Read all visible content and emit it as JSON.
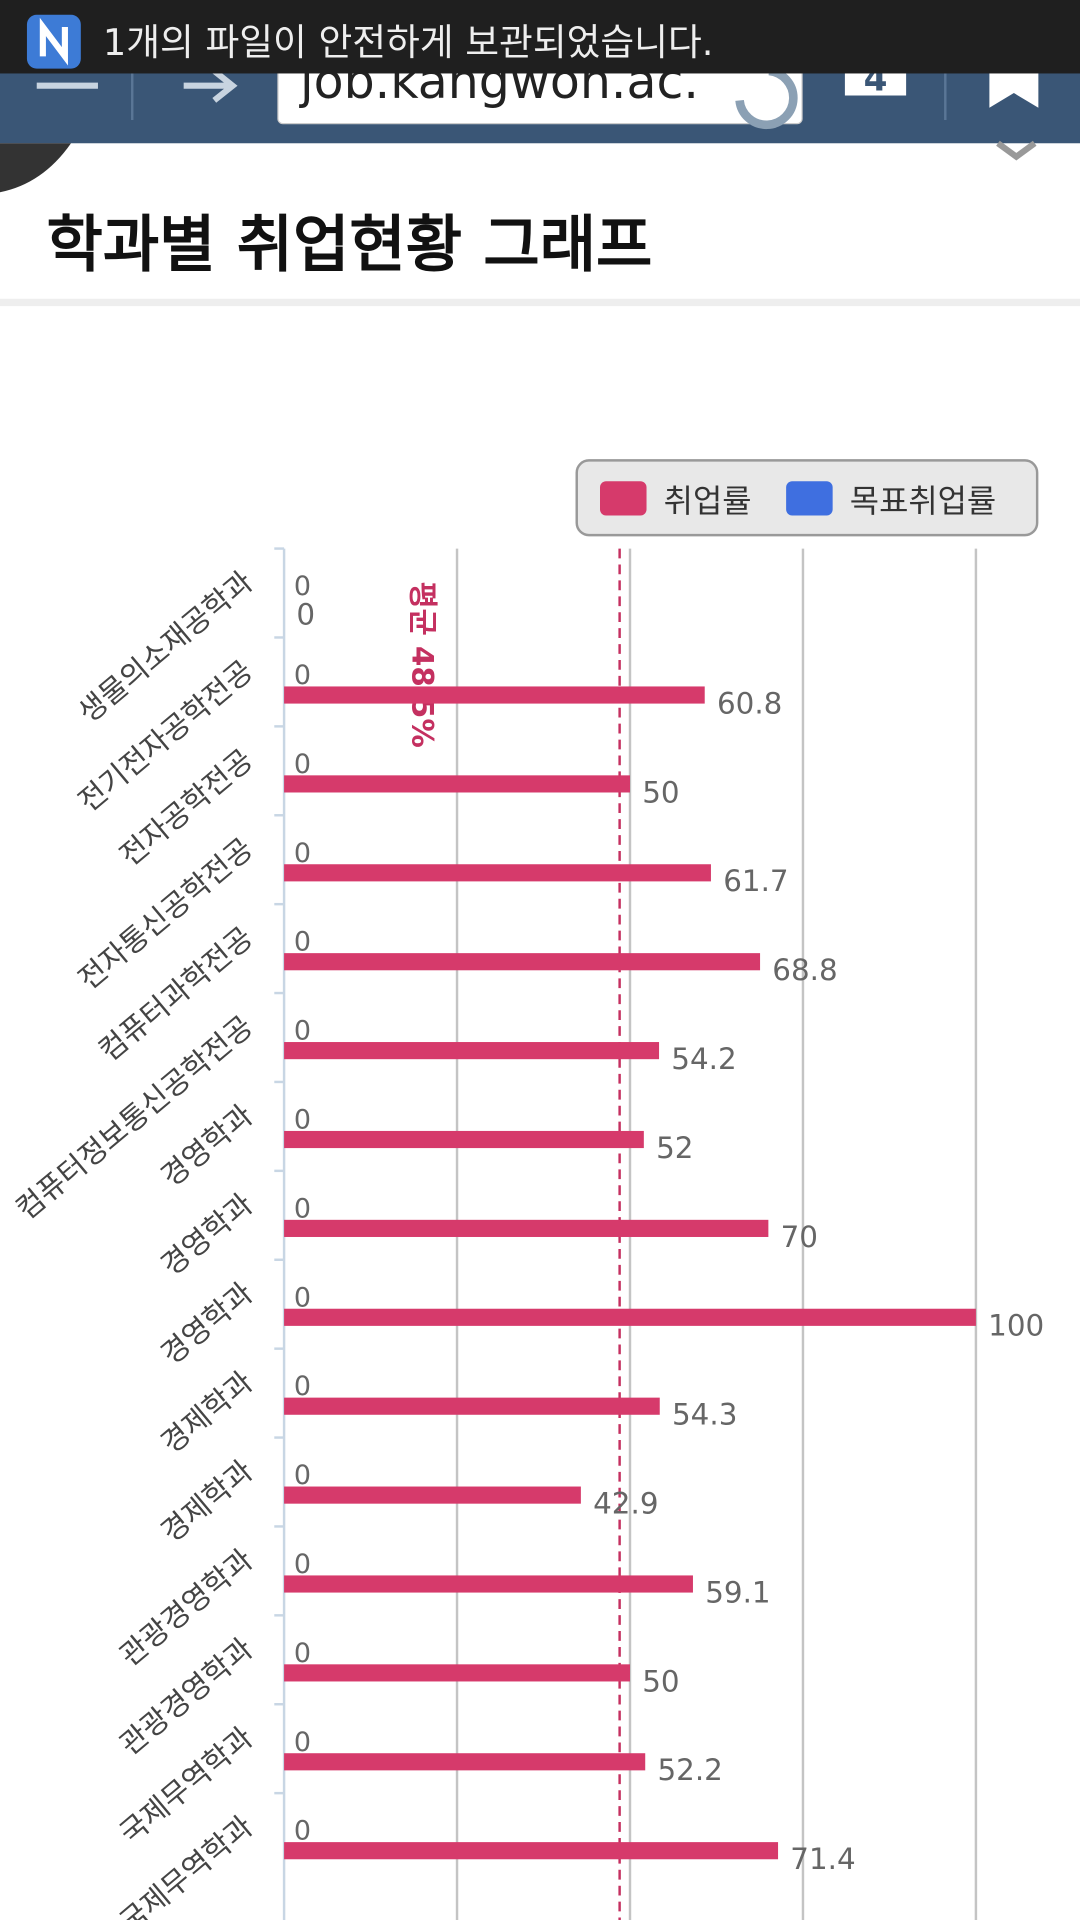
{
  "status_bar": {
    "notification": "1개의 파일이 안전하게 보관되었습니다."
  },
  "browser": {
    "url": "job.kangwon.ac.",
    "tab_count": 4
  },
  "page_title": "학과별 취업현황 그래프",
  "chart_data": {
    "type": "bar",
    "orientation": "horizontal",
    "categories": [
      "생물의소재공학과",
      "전기전자공학전공",
      "전자공학전공",
      "전자통신공학전공",
      "컴퓨터과학전공",
      "컴퓨터정보통신공학전공",
      "경영학과",
      "경영학과",
      "경영학과",
      "경제학과",
      "경제학과",
      "관광경영학과",
      "관광경영학과",
      "국제무역학과",
      "국제무역학과"
    ],
    "series": [
      {
        "name": "취업률",
        "color": "#d63a6b",
        "values": [
          0,
          60.8,
          50,
          61.7,
          68.8,
          54.2,
          52,
          70,
          100,
          54.3,
          42.9,
          59.1,
          50,
          52.2,
          71.4
        ]
      },
      {
        "name": "목표취업률",
        "color": "#3f6fe0",
        "values": [
          0,
          0,
          0,
          0,
          0,
          0,
          0,
          0,
          0,
          0,
          0,
          0,
          0,
          0,
          0
        ]
      }
    ],
    "xlim": [
      0,
      100
    ],
    "xticks": [
      0,
      25,
      50,
      75,
      100
    ],
    "grid": true,
    "legend": "top-right",
    "annotations": [
      {
        "label": "평균 48.5%",
        "value": 48.5
      }
    ]
  }
}
